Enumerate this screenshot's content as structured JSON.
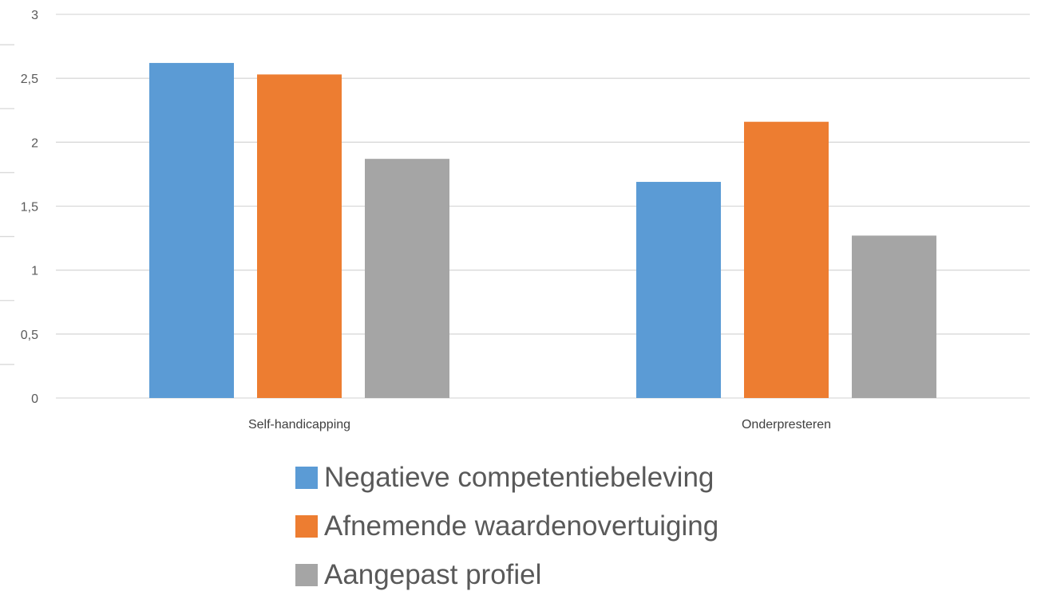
{
  "chart_data": {
    "type": "bar",
    "categories": [
      "Self-handicapping",
      "Onderpresteren"
    ],
    "series": [
      {
        "name": "Negatieve competentiebeleving",
        "color": "#5b9bd5",
        "values": [
          2.62,
          1.69
        ]
      },
      {
        "name": "Afnemende waardenovertuiging",
        "color": "#ed7d31",
        "values": [
          2.53,
          2.16
        ]
      },
      {
        "name": "Aangepast profiel",
        "color": "#a5a5a5",
        "values": [
          1.87,
          1.27
        ]
      }
    ],
    "ylim": [
      0,
      3
    ],
    "yticks": [
      "0",
      "0,5",
      "1",
      "1,5",
      "2",
      "2,5",
      "3"
    ],
    "ytick_values": [
      0,
      0.5,
      1,
      1.5,
      2,
      2.5,
      3
    ],
    "grid": true,
    "legend_position": "bottom",
    "title": "",
    "xlabel": "",
    "ylabel": ""
  }
}
